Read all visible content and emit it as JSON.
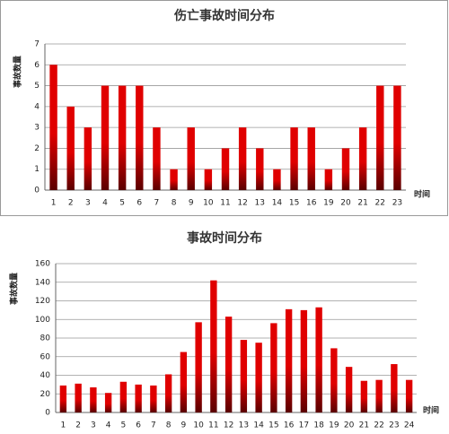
{
  "chart_data": [
    {
      "type": "bar",
      "title": "伤亡事故时间分布",
      "y_label": "事故数量",
      "x_label": "时间",
      "categories": [
        "1",
        "2",
        "3",
        "4",
        "5",
        "6",
        "7",
        "8",
        "9",
        "10",
        "11",
        "12",
        "13",
        "14",
        "15",
        "16",
        "19",
        "20",
        "21",
        "22",
        "23"
      ],
      "values": [
        6,
        4,
        3,
        5,
        5,
        5,
        3,
        1,
        3,
        1,
        2,
        3,
        2,
        1,
        3,
        3,
        1,
        2,
        3,
        5,
        5
      ],
      "color": "#e00000",
      "ylim": [
        0,
        7
      ],
      "yticks": [
        0,
        1,
        2,
        3,
        4,
        5,
        6,
        7
      ],
      "grid": true
    },
    {
      "type": "bar",
      "title": "事故时间分布",
      "y_label": "事故数量",
      "x_label": "时间",
      "categories": [
        "1",
        "2",
        "3",
        "4",
        "5",
        "6",
        "7",
        "8",
        "9",
        "10",
        "11",
        "12",
        "13",
        "14",
        "15",
        "16",
        "17",
        "18",
        "19",
        "20",
        "21",
        "22",
        "23",
        "24"
      ],
      "values": [
        29,
        31,
        27,
        21,
        33,
        30,
        29,
        41,
        65,
        97,
        142,
        103,
        78,
        75,
        96,
        111,
        110,
        113,
        69,
        49,
        34,
        35,
        52,
        35
      ],
      "color": "#e00000",
      "ylim": [
        0,
        160
      ],
      "yticks": [
        0,
        20,
        40,
        60,
        80,
        100,
        120,
        140,
        160
      ],
      "grid": true
    }
  ]
}
